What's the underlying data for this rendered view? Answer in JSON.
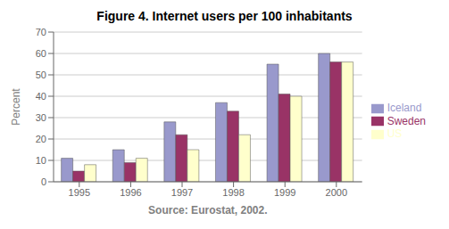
{
  "chart_data": {
    "type": "bar",
    "title": "Figure 4. Internet users per 100 inhabitants",
    "xlabel": "Source: Eurostat, 2002.",
    "ylabel": "Percent",
    "categories": [
      "1995",
      "1996",
      "1997",
      "1998",
      "1999",
      "2000"
    ],
    "series": [
      {
        "name": "Iceland",
        "color": "#9999cc",
        "values": [
          11,
          15,
          28,
          37,
          55,
          60
        ]
      },
      {
        "name": "Sweden",
        "color": "#993366",
        "values": [
          5,
          9,
          22,
          33,
          41,
          56
        ]
      },
      {
        "name": "US",
        "color": "#ffffcc",
        "values": [
          8,
          11,
          15,
          22,
          40,
          56
        ]
      }
    ],
    "ylim": [
      0,
      70
    ],
    "yticks": [
      0,
      10,
      20,
      30,
      40,
      50,
      60,
      70
    ],
    "grid": true,
    "legend": "right"
  }
}
